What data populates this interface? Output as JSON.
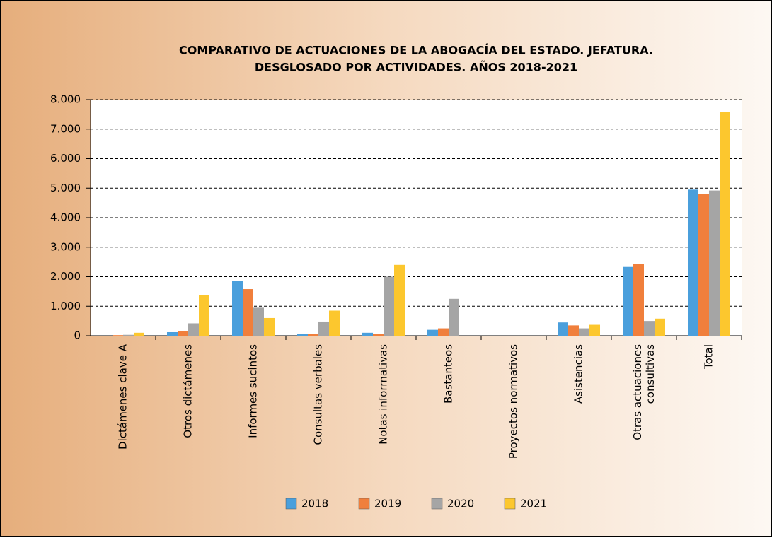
{
  "chart_data": {
    "type": "bar",
    "title": "COMPARATIVO DE ACTUACIONES DE LA ABOGACÍA DEL ESTADO. JEFATURA.",
    "subtitle": "DESGLOSADO POR ACTIVIDADES. AÑOS 2018-2021",
    "categories": [
      "Dictámenes clave A",
      "Otros dictámenes",
      "Informes sucintos",
      "Consultas verbales",
      "Notas informativas",
      "Bastanteos",
      "Proyectos normativos",
      "Asistencias",
      "Otras actuaciones consultivas",
      "Total"
    ],
    "series": [
      {
        "name": "2018",
        "color": "#4a9fdc",
        "values": [
          0,
          120,
          1850,
          70,
          100,
          200,
          0,
          450,
          2330,
          4950
        ]
      },
      {
        "name": "2019",
        "color": "#f07f3c",
        "values": [
          20,
          150,
          1580,
          50,
          60,
          250,
          0,
          350,
          2430,
          4800
        ]
      },
      {
        "name": "2020",
        "color": "#a5a5a5",
        "values": [
          30,
          420,
          950,
          480,
          2000,
          1250,
          0,
          250,
          500,
          4920
        ]
      },
      {
        "name": "2021",
        "color": "#fcc72e",
        "values": [
          100,
          1380,
          600,
          850,
          2400,
          0,
          0,
          370,
          580,
          7580
        ]
      }
    ],
    "ylim": [
      0,
      8000
    ],
    "yticks": [
      0,
      {
        "value": 1000,
        "label": "1.000"
      },
      {
        "value": 2000,
        "label": "2.000"
      },
      {
        "value": 3000,
        "label": "3.000"
      },
      {
        "value": 4000,
        "label": "4.000"
      },
      {
        "value": 5000,
        "label": "5.000"
      },
      {
        "value": 6000,
        "label": "6.000"
      },
      {
        "value": 7000,
        "label": "7.000"
      },
      {
        "value": 8000,
        "label": "8.000"
      }
    ],
    "grid": true
  }
}
